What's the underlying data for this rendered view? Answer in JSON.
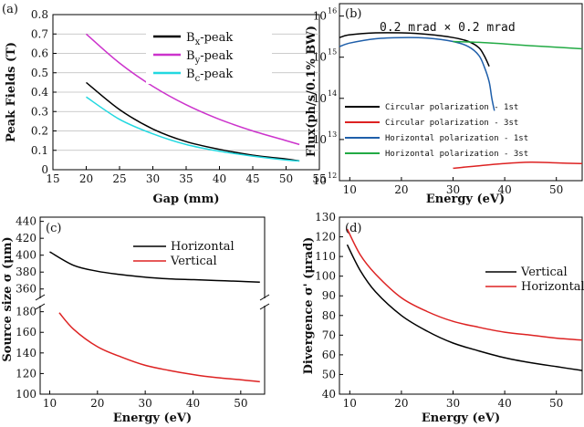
{
  "chart_data": [
    {
      "id": "a",
      "panel_label": "(a)",
      "type": "line",
      "xlabel": "Gap (mm)",
      "ylabel": "Peak Fields (T)",
      "xlim": [
        15,
        55
      ],
      "ylim": [
        0,
        0.8
      ],
      "xticks": [
        15,
        20,
        25,
        30,
        35,
        40,
        45,
        50,
        55
      ],
      "yticks": [
        0,
        0.1,
        0.2,
        0.3,
        0.4,
        0.5,
        0.6,
        0.7,
        0.8
      ],
      "grid": true,
      "legend_position": "top-right",
      "series": [
        {
          "name": "Bx-peak",
          "main": "B",
          "sub": "x",
          "suffix": "-peak",
          "color": "#000000",
          "x": [
            20,
            25,
            30,
            35,
            40,
            45,
            50,
            52
          ],
          "y": [
            0.45,
            0.31,
            0.21,
            0.145,
            0.105,
            0.075,
            0.055,
            0.045
          ]
        },
        {
          "name": "By-peak",
          "main": "B",
          "sub": "y",
          "suffix": "-peak",
          "color": "#cc33cc",
          "x": [
            20,
            25,
            30,
            35,
            40,
            45,
            50,
            52
          ],
          "y": [
            0.7,
            0.55,
            0.43,
            0.335,
            0.26,
            0.2,
            0.15,
            0.13
          ]
        },
        {
          "name": "Bc-peak",
          "main": "B",
          "sub": "c",
          "suffix": "-peak",
          "color": "#22d8e0",
          "x": [
            20,
            25,
            30,
            35,
            40,
            45,
            50,
            52
          ],
          "y": [
            0.375,
            0.26,
            0.185,
            0.13,
            0.095,
            0.07,
            0.05,
            0.045
          ]
        }
      ]
    },
    {
      "id": "b",
      "panel_label": "(b)",
      "type": "line",
      "xlabel": "Energy (eV)",
      "ylabel": "Flux(ph/s/0.1% BW)",
      "annotation": "0.2 mrad × 0.2 mrad",
      "yscale": "log",
      "xlim": [
        8,
        55
      ],
      "ylim": [
        1000000000000.0,
        2e+16
      ],
      "xticks": [
        10,
        20,
        30,
        40,
        50
      ],
      "yticks": [
        1000000000000.0,
        10000000000000.0,
        100000000000000.0,
        1000000000000000.0,
        1e+16
      ],
      "ytick_labels": [
        "10",
        "10",
        "10",
        "10",
        "10"
      ],
      "ytick_exps": [
        "12",
        "13",
        "14",
        "15",
        "16"
      ],
      "legend_position": "bottom-left",
      "series": [
        {
          "name": "Circular polarization - 1st",
          "color": "#000000",
          "x": [
            8,
            10,
            15,
            20,
            25,
            30,
            33,
            35,
            36,
            37
          ],
          "y": [
            3000000000000000.0,
            3500000000000000.0,
            3900000000000000.0,
            3900000000000000.0,
            3600000000000000.0,
            3000000000000000.0,
            2400000000000000.0,
            1700000000000000.0,
            1100000000000000.0,
            600000000000000.0
          ]
        },
        {
          "name": "Circular polarization - 3st",
          "color": "#dd2222",
          "x": [
            30,
            35,
            40,
            45,
            50,
            55
          ],
          "y": [
            2000000000000.0,
            2300000000000.0,
            2600000000000.0,
            2800000000000.0,
            2700000000000.0,
            2600000000000.0
          ]
        },
        {
          "name": "Horizontal polarization - 1st",
          "color": "#1f5faa",
          "x": [
            8,
            10,
            15,
            20,
            25,
            30,
            33,
            35,
            36,
            37,
            37.5,
            38
          ],
          "y": [
            1800000000000000.0,
            2200000000000000.0,
            2800000000000000.0,
            3000000000000000.0,
            2900000000000000.0,
            2400000000000000.0,
            1800000000000000.0,
            1100000000000000.0,
            600000000000000.0,
            250000000000000.0,
            100000000000000.0,
            50000000000000.0
          ]
        },
        {
          "name": "Horizontal polarization - 3st",
          "color": "#22aa44",
          "x": [
            30,
            35,
            40,
            45,
            50,
            55
          ],
          "y": [
            2400000000000000.0,
            2300000000000000.0,
            2100000000000000.0,
            1900000000000000.0,
            1750000000000000.0,
            1600000000000000.0
          ]
        }
      ]
    },
    {
      "id": "c",
      "panel_label": "(c)",
      "type": "line",
      "xlabel": "Energy (eV)",
      "ylabel": "Source size σ  (μm)",
      "broken_axis": true,
      "xlim": [
        8,
        55
      ],
      "ylim_upper": [
        350,
        445
      ],
      "ylim_lower": [
        100,
        185
      ],
      "xticks": [
        10,
        20,
        30,
        40,
        50
      ],
      "yticks_upper": [
        360,
        380,
        400,
        420,
        440
      ],
      "yticks_lower": [
        100,
        120,
        140,
        160,
        180
      ],
      "legend_position": "top-right",
      "series": [
        {
          "name": "Horizontal",
          "color": "#000000",
          "axis": "upper",
          "x": [
            10,
            15,
            20,
            25,
            30,
            35,
            40,
            45,
            50,
            54
          ],
          "y": [
            404,
            388,
            381,
            377,
            374,
            372,
            371,
            370,
            369,
            368
          ]
        },
        {
          "name": "Vertical",
          "color": "#dd2222",
          "axis": "lower",
          "x": [
            12,
            15,
            20,
            25,
            30,
            35,
            40,
            45,
            50,
            54
          ],
          "y": [
            179,
            163,
            146,
            136,
            128,
            123,
            119,
            116,
            114,
            112
          ]
        }
      ]
    },
    {
      "id": "d",
      "panel_label": "(d)",
      "type": "line",
      "xlabel": "Energy (eV)",
      "ylabel": "Divergence σ'  (μrad)",
      "xlim": [
        8,
        55
      ],
      "ylim": [
        40,
        130
      ],
      "xticks": [
        10,
        20,
        30,
        40,
        50
      ],
      "yticks": [
        40,
        50,
        60,
        70,
        80,
        90,
        100,
        110,
        120,
        130
      ],
      "legend_position": "top-right",
      "series": [
        {
          "name": "Vertical",
          "color": "#000000",
          "x": [
            9.5,
            12,
            15,
            20,
            25,
            30,
            35,
            40,
            45,
            50,
            55
          ],
          "y": [
            116,
            103,
            92,
            80,
            72,
            66,
            62,
            58.5,
            56,
            54,
            52
          ]
        },
        {
          "name": "Horizontal",
          "color": "#dd2222",
          "x": [
            9.5,
            12,
            15,
            20,
            25,
            30,
            35,
            40,
            45,
            50,
            55
          ],
          "y": [
            124,
            111,
            101,
            89,
            82,
            77,
            74,
            71.5,
            70,
            68.5,
            67.5
          ]
        }
      ]
    }
  ]
}
